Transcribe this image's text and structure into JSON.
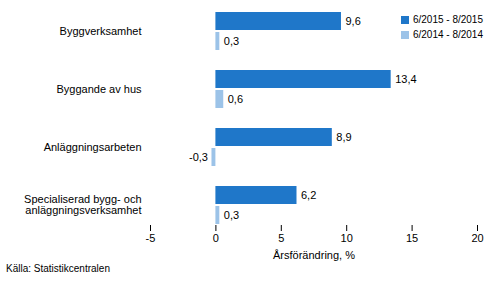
{
  "chart_data": {
    "type": "bar",
    "orientation": "horizontal",
    "categories": [
      "Byggverksamhet",
      "Byggande av hus",
      "Anläggningsarbeten",
      "Specialiserad bygg- och anläggningsverksamhet"
    ],
    "series": [
      {
        "name": "6/2015 - 8/2015",
        "color": "#1f77c9",
        "values": [
          9.6,
          13.4,
          8.9,
          6.2
        ],
        "value_labels": [
          "9,6",
          "13,4",
          "8,9",
          "6,2"
        ]
      },
      {
        "name": "6/2014 - 8/2014",
        "color": "#9cc3e8",
        "values": [
          0.3,
          0.6,
          -0.3,
          0.3
        ],
        "value_labels": [
          "0,3",
          "0,6",
          "-0,3",
          "0,3"
        ]
      }
    ],
    "xlabel": "Årsförändring, %",
    "xlim": [
      -5,
      20
    ],
    "xticks": [
      -5,
      0,
      5,
      10,
      15,
      20
    ],
    "data_labels": true,
    "legend": "top-right",
    "grid": false,
    "caption": "Källa: Statistikcentralen"
  }
}
